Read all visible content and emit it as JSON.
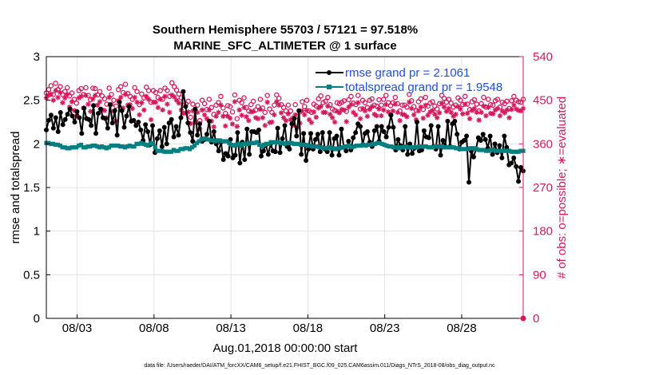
{
  "chart_data": {
    "type": "line",
    "title": "Southern Hemisphere 55703 / 57121 = 97.518%",
    "subtitle": "MARINE_SFC_ALTIMETER @ 1 surface",
    "xlabel": "Aug.01,2018 00:00:00 start",
    "ylabel": "rmse and totalspread",
    "y2label": "# of obs: o=possible; ∗=evaluated",
    "ylim": [
      0,
      3
    ],
    "y2lim": [
      0,
      540
    ],
    "yticks": [
      "0",
      "0.5",
      "1",
      "1.5",
      "2",
      "2.5",
      "3"
    ],
    "y2ticks": [
      "0",
      "90",
      "180",
      "270",
      "360",
      "450",
      "540"
    ],
    "xtick_labels": [
      "08/03",
      "08/08",
      "08/13",
      "08/18",
      "08/23",
      "08/28"
    ],
    "xtick_days": [
      3,
      8,
      13,
      18,
      23,
      28
    ],
    "xlim_days": [
      1,
      32
    ],
    "footnote": "data file: /Users/raeder/DAI/ATM_forcXX/CAM6_setup/f.e21.FHIST_BGC.f09_025.CAM6assim.011/Diags_NTrS_2018-08/obs_diag_output.nc",
    "series": [
      {
        "name": "rmse",
        "legend": "rmse grand pr = 2.1061",
        "color": "#000000",
        "axis": "left",
        "values": [
          2.16,
          2.27,
          2.33,
          2.18,
          2.3,
          2.14,
          2.36,
          2.22,
          2.28,
          2.34,
          2.4,
          2.32,
          2.25,
          2.37,
          2.3,
          2.12,
          2.41,
          2.29,
          2.28,
          2.21,
          2.44,
          2.12,
          2.35,
          2.4,
          2.3,
          2.29,
          2.18,
          2.45,
          2.24,
          2.38,
          2.1,
          2.48,
          2.38,
          2.19,
          2.32,
          2.43,
          2.26,
          2.27,
          2.21,
          2.25,
          2.16,
          2.04,
          2.22,
          2.14,
          1.99,
          2.21,
          1.9,
          2.06,
          2.15,
          1.97,
          2.19,
          2.0,
          2.24,
          2.28,
          2.08,
          2.2,
          2.1,
          2.3,
          2.6,
          2.43,
          2.24,
          2.13,
          2.03,
          2.4,
          2.1,
          2.23,
          2.03,
          2.05,
          2.11,
          2.26,
          2.02,
          2.14,
          2.0,
          1.92,
          2.02,
          1.82,
          1.89,
          1.86,
          2.05,
          1.84,
          1.87,
          2.13,
          1.78,
          2.02,
          1.82,
          2.17,
          1.88,
          2.14,
          2.14,
          2.13,
          2.16,
          1.86,
          1.92,
          1.99,
          1.88,
          2.0,
          1.92,
          1.91,
          2.18,
          1.9,
          2.06,
          2.21,
          1.97,
          1.94,
          2.23,
          2.29,
          2.09,
          2.38,
          1.88,
          2.12,
          1.81,
          1.94,
          2.12,
          1.94,
          2.05,
          2.11,
          1.91,
          2.13,
          1.94,
          1.91,
          2.13,
          1.87,
          2.06,
          2.09,
          1.87,
          2.17,
          1.96,
          1.92,
          2.03,
          1.93,
          2.07,
          2.13,
          2.23,
          2.2,
          1.99,
          2.12,
          2.14,
          2.02,
          1.97,
          2.15,
          2.2,
          2.03,
          2.2,
          2.14,
          2.08,
          2.19,
          2.33,
          2.19,
          1.93,
          2.05,
          1.98,
          1.93,
          2.2,
          1.88,
          2.0,
          1.89,
          1.95,
          2.25,
          1.92,
          1.93,
          2.15,
          2.08,
          2.07,
          2.21,
          1.97,
          1.94,
          2.2,
          1.87,
          2.04,
          1.97,
          2.26,
          1.97,
          2.23,
          2.26,
          2.11,
          1.94,
          2.02,
          2.04,
          2.09,
          1.56,
          1.92,
          1.85,
          1.94,
          2.07,
          2.04,
          2.11,
          2.05,
          1.95,
          2.09,
          1.88,
          2.0,
          1.9,
          1.98,
          1.84,
          2.09,
          1.96,
          1.76,
          1.78,
          1.84,
          1.74,
          1.57,
          1.73,
          1.69
        ]
      },
      {
        "name": "totalspread",
        "legend": "totalspread grand pr = 1.9548",
        "color": "#008080",
        "axis": "left",
        "values": [
          2.01,
          2.01,
          2.0,
          2.0,
          1.99,
          1.99,
          1.98,
          1.96,
          1.96,
          1.95,
          1.95,
          1.96,
          1.96,
          1.96,
          1.98,
          1.99,
          1.96,
          1.96,
          1.97,
          1.97,
          1.98,
          1.98,
          1.97,
          1.96,
          1.97,
          1.96,
          1.95,
          1.96,
          1.98,
          1.98,
          1.98,
          1.98,
          1.97,
          1.97,
          1.96,
          1.97,
          1.98,
          1.97,
          1.97,
          2.0,
          2.0,
          2.01,
          2.0,
          1.99,
          1.98,
          2.01,
          2.0,
          1.96,
          1.92,
          1.92,
          1.92,
          1.91,
          1.91,
          1.91,
          1.91,
          1.93,
          1.92,
          1.92,
          1.94,
          1.94,
          1.95,
          1.95,
          1.94,
          1.96,
          1.98,
          2.01,
          2.03,
          2.05,
          2.06,
          2.06,
          2.05,
          2.04,
          2.04,
          2.03,
          2.04,
          2.04,
          2.03,
          2.03,
          2.03,
          2.01,
          1.99,
          1.98,
          1.99,
          2.0,
          1.98,
          2.0,
          2.0,
          2.0,
          2.01,
          2.01,
          2.01,
          2.02,
          1.99,
          1.97,
          1.99,
          2.0,
          2.0,
          2.02,
          2.02,
          2.02,
          2.02,
          2.01,
          2.01,
          2.0,
          2.01,
          2.01,
          2.01,
          2.0,
          2.0,
          2.0,
          1.99,
          1.99,
          1.99,
          1.98,
          1.98,
          1.97,
          1.97,
          1.97,
          1.96,
          1.96,
          1.95,
          1.95,
          1.96,
          1.95,
          1.95,
          1.94,
          1.95,
          1.95,
          1.96,
          1.97,
          1.97,
          1.98,
          1.96,
          1.97,
          1.98,
          1.98,
          1.98,
          1.99,
          1.98,
          1.99,
          1.99,
          2.0,
          2.0,
          2.01,
          2.01,
          2.0,
          1.99,
          1.98,
          1.97,
          1.97,
          1.96,
          1.96,
          1.95,
          1.96,
          1.96,
          1.97,
          1.96,
          1.96,
          1.96,
          1.96,
          1.96,
          1.97,
          1.97,
          1.97,
          1.97,
          1.96,
          1.96,
          1.96,
          1.97,
          1.97,
          1.97,
          1.97,
          1.96,
          1.96,
          1.96,
          1.96,
          1.96,
          1.95,
          1.95,
          1.94,
          1.94,
          1.94,
          1.94,
          1.95,
          1.95,
          1.95,
          1.94,
          1.93,
          1.93,
          1.93,
          1.92,
          1.92,
          1.93,
          1.93,
          1.92,
          1.92,
          1.92,
          1.92,
          1.92,
          1.92,
          1.92,
          1.91,
          1.91,
          1.91,
          1.91,
          1.92,
          1.92
        ]
      },
      {
        "name": "obs_possible",
        "marker": "o",
        "color": "#d6185d",
        "axis": "right",
        "values": [
          465,
          472,
          480,
          462,
          485,
          472,
          478,
          462,
          468,
          476,
          459,
          465,
          452,
          444,
          470,
          474,
          462,
          476,
          460,
          451,
          475,
          474,
          461,
          468,
          459,
          453,
          442,
          475,
          462,
          450,
          438,
          472,
          478,
          466,
          483,
          464,
          458,
          452,
          476,
          468,
          441,
          463,
          455,
          477,
          470,
          446,
          470,
          466,
          456,
          470,
          452,
          475,
          470,
          458,
          486,
          478,
          471,
          463,
          455,
          440,
          442,
          448,
          415,
          442,
          430,
          440,
          408,
          450,
          443,
          431,
          452,
          435,
          421,
          440,
          445,
          458,
          434,
          423,
          439,
          437,
          426,
          461,
          412,
          450,
          445,
          455,
          435,
          428,
          441,
          448,
          430,
          437,
          452,
          434,
          425,
          460,
          432,
          425,
          440,
          461,
          454,
          441,
          435,
          428,
          440,
          428,
          413,
          441,
          417,
          426,
          447,
          437,
          450,
          428,
          425,
          442,
          438,
          453,
          459,
          445,
          448,
          456,
          441,
          432,
          429,
          445,
          443,
          446,
          449,
          427,
          451,
          458,
          444,
          441,
          460,
          432,
          450,
          445,
          435,
          450,
          453,
          440,
          438,
          451,
          440,
          452,
          460,
          445,
          439,
          445,
          456,
          443,
          428,
          440,
          440,
          436,
          462,
          449,
          437,
          429,
          447,
          453,
          431,
          456,
          438,
          444,
          447,
          438,
          432,
          443,
          460,
          454,
          446,
          452,
          444,
          436,
          440,
          455,
          450,
          441,
          458,
          442,
          431,
          447,
          451,
          442,
          428,
          443,
          456,
          436,
          452,
          441,
          440,
          449,
          452,
          436,
          446,
          443,
          448,
          433,
          449,
          458,
          450,
          447,
          446,
          452
        ]
      },
      {
        "name": "obs_evaluated",
        "marker": "*",
        "color": "#d6185d",
        "axis": "right",
        "values": [
          455,
          460,
          463,
          450,
          470,
          456,
          466,
          445,
          455,
          462,
          436,
          447,
          429,
          418,
          455,
          458,
          434,
          460,
          442,
          427,
          453,
          460,
          440,
          447,
          430,
          429,
          414,
          456,
          441,
          427,
          407,
          449,
          456,
          434,
          462,
          440,
          441,
          433,
          456,
          446,
          420,
          445,
          430,
          458,
          452,
          410,
          446,
          446,
          435,
          452,
          430,
          458,
          442,
          425,
          461,
          457,
          450,
          444,
          430,
          423,
          424,
          426,
          402,
          428,
          405,
          425,
          391,
          430,
          420,
          412,
          430,
          407,
          395,
          417,
          425,
          440,
          417,
          397,
          417,
          413,
          401,
          447,
          396,
          430,
          419,
          435,
          416,
          408,
          426,
          427,
          414,
          412,
          431,
          414,
          398,
          446,
          404,
          405,
          420,
          447,
          440,
          424,
          414,
          408,
          422,
          410,
          398,
          420,
          394,
          403,
          428,
          420,
          429,
          410,
          404,
          426,
          415,
          434,
          437,
          425,
          425,
          438,
          421,
          414,
          405,
          427,
          424,
          431,
          430,
          406,
          436,
          441,
          425,
          420,
          445,
          412,
          433,
          428,
          417,
          431,
          437,
          421,
          418,
          432,
          418,
          430,
          441,
          426,
          420,
          428,
          442,
          425,
          408,
          421,
          420,
          416,
          446,
          433,
          420,
          410,
          428,
          436,
          413,
          440,
          419,
          426,
          429,
          421,
          414,
          424,
          444,
          436,
          427,
          433,
          425,
          417,
          421,
          437,
          432,
          422,
          442,
          423,
          412,
          429,
          433,
          425,
          409,
          425,
          438,
          418,
          435,
          423,
          422,
          430,
          433,
          418,
          428,
          424,
          430,
          414,
          431,
          440,
          432,
          429,
          428,
          433
        ]
      }
    ]
  }
}
